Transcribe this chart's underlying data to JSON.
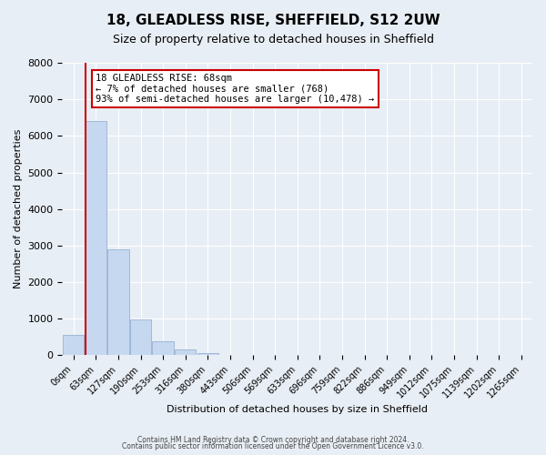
{
  "title": "18, GLEADLESS RISE, SHEFFIELD, S12 2UW",
  "subtitle": "Size of property relative to detached houses in Sheffield",
  "xlabel": "Distribution of detached houses by size in Sheffield",
  "ylabel": "Number of detached properties",
  "bar_labels": [
    "0sqm",
    "63sqm",
    "127sqm",
    "190sqm",
    "253sqm",
    "316sqm",
    "380sqm",
    "443sqm",
    "506sqm",
    "569sqm",
    "633sqm",
    "696sqm",
    "759sqm",
    "822sqm",
    "886sqm",
    "949sqm",
    "1012sqm",
    "1075sqm",
    "1139sqm",
    "1202sqm",
    "1265sqm"
  ],
  "bar_values": [
    560,
    6400,
    2900,
    975,
    380,
    165,
    70,
    0,
    0,
    0,
    0,
    0,
    0,
    0,
    0,
    0,
    0,
    0,
    0,
    0,
    0
  ],
  "bar_color": "#c5d8f0",
  "bar_edge_color": "#a0b8d8",
  "ylim": [
    0,
    8000
  ],
  "yticks": [
    0,
    1000,
    2000,
    3000,
    4000,
    5000,
    6000,
    7000,
    8000
  ],
  "property_line_x": 1,
  "property_line_color": "#cc0000",
  "annotation_text": "18 GLEADLESS RISE: 68sqm\n← 7% of detached houses are smaller (768)\n93% of semi-detached houses are larger (10,478) →",
  "annotation_box_color": "#ffffff",
  "annotation_box_edge_color": "#cc0000",
  "footer_line1": "Contains HM Land Registry data © Crown copyright and database right 2024.",
  "footer_line2": "Contains public sector information licensed under the Open Government Licence v3.0.",
  "background_color": "#e8eef5",
  "plot_bg_color": "#e8eef5",
  "grid_color": "#ffffff"
}
